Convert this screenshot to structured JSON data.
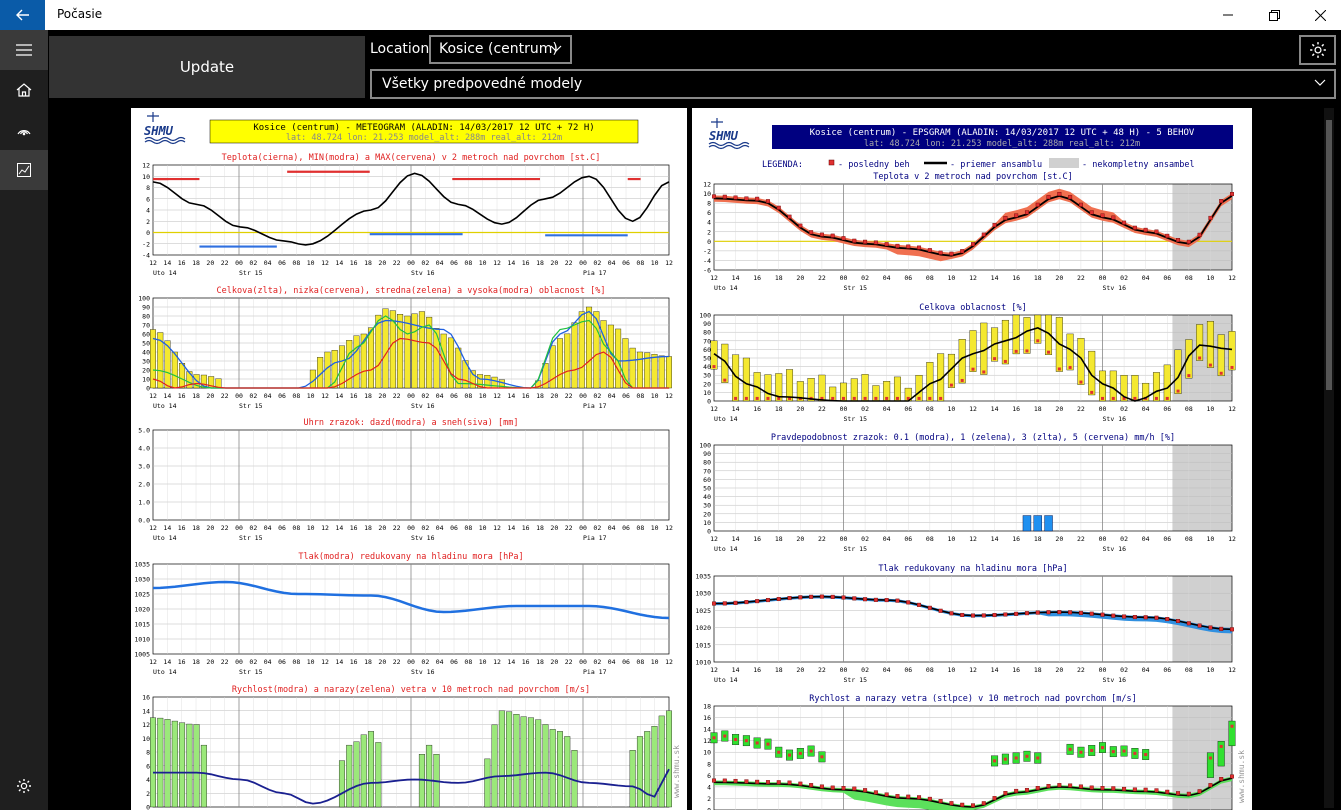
{
  "app": {
    "title": "Počasie"
  },
  "toolbar": {
    "update_label": "Update",
    "location_label": "Location",
    "location_value": "Kosice (centrum)",
    "models_value": "Všetky predpovedné modely"
  },
  "colors": {
    "accent": "#0a5ba8",
    "meteo_title_bg": "#ffff00",
    "eps_title_bg": "#000080"
  },
  "meteogram": {
    "logo_text": "SHMU",
    "header": "Kosice (centrum) - METEOGRAM (ALADIN: 14/03/2017 12 UTC + 72 H)",
    "sub": "lat: 48.724  lon: 21.253  model_alt: 288m  real_alt: 212m",
    "day_labels": [
      "Uto 14",
      "Str 15",
      "Stv 16",
      "Pia 17"
    ],
    "hour_labels": [
      "12",
      "14",
      "16",
      "18",
      "20",
      "22",
      "00",
      "02",
      "04",
      "06",
      "08",
      "10",
      "12",
      "14",
      "16",
      "18",
      "20",
      "22",
      "00",
      "02",
      "04",
      "06",
      "08",
      "10",
      "12",
      "14",
      "16",
      "18",
      "20",
      "22",
      "00",
      "02",
      "04",
      "06",
      "08",
      "10",
      "12"
    ],
    "watermark": "www.shmu.sk",
    "charts": [
      {
        "title": "Teplota(cierna), MIN(modra) a MAX(cervena) v 2 metroch nad povrchom [st.C]",
        "ylabels": [
          "12",
          "10",
          "8",
          "6",
          "4",
          "2",
          "0",
          "-2",
          "-4"
        ]
      },
      {
        "title": "Celkova(zlta), nizka(cervena), stredna(zelena) a vysoka(modra) oblacnost [%]",
        "ylabels": [
          "100",
          "90",
          "80",
          "70",
          "60",
          "50",
          "40",
          "30",
          "20",
          "10",
          "0"
        ]
      },
      {
        "title": "Uhrn zrazok: dazd(modra) a sneh(siva) [mm]",
        "ylabels": [
          "5.0",
          "4.0",
          "3.0",
          "2.0",
          "1.0",
          "0.0"
        ]
      },
      {
        "title": "Tlak(modra) redukovany na hladinu mora [hPa]",
        "ylabels": [
          "1035",
          "1030",
          "1025",
          "1020",
          "1015",
          "1010",
          "1005"
        ]
      },
      {
        "title": "Rychlost(modra) a narazy(zelena) vetra v 10 metroch nad povrchom [m/s]",
        "ylabels": [
          "16",
          "14",
          "12",
          "10",
          "8",
          "6",
          "4",
          "2",
          "0"
        ]
      }
    ]
  },
  "epsgram": {
    "logo_text": "SHMU",
    "header": "Kosice (centrum) - EPSGRAM (ALADIN: 14/03/2017 12 UTC + 48 H) - 5 BEHOV",
    "sub": "lat: 48.724  lon: 21.253  model_alt: 288m  real_alt: 212m",
    "legend": {
      "title": "LEGENDA:",
      "last": "- posledny beh",
      "mean": "- priemer ansamblu",
      "incomplete": "- nekompletny ansambel"
    },
    "day_labels": [
      "Uto 14",
      "Str 15",
      "Stv 16"
    ],
    "hour_labels": [
      "12",
      "14",
      "16",
      "18",
      "20",
      "22",
      "00",
      "02",
      "04",
      "06",
      "08",
      "10",
      "12",
      "14",
      "16",
      "18",
      "20",
      "22",
      "00",
      "02",
      "04",
      "06",
      "08",
      "10",
      "12"
    ],
    "watermark": "www.shmu.sk",
    "charts": [
      {
        "title": "Teplota v 2 metroch nad povrchom [st.C]",
        "ylabels": [
          "12",
          "10",
          "8",
          "6",
          "4",
          "2",
          "0",
          "-2",
          "-4",
          "-6"
        ]
      },
      {
        "title": "Celkova oblacnost [%]",
        "ylabels": [
          "100",
          "90",
          "80",
          "70",
          "60",
          "50",
          "40",
          "30",
          "20",
          "10",
          "0"
        ]
      },
      {
        "title": "Pravdepodobnost zrazok: 0.1 (modra), 1 (zelena), 3 (zlta), 5 (cervena) mm/h [%]",
        "ylabels": [
          "100",
          "90",
          "80",
          "70",
          "60",
          "50",
          "40",
          "30",
          "20",
          "10",
          "0"
        ]
      },
      {
        "title": "Tlak redukovany na hladinu mora [hPa]",
        "ylabels": [
          "1035",
          "1030",
          "1025",
          "1020",
          "1015",
          "1010"
        ]
      },
      {
        "title": "Rychlost a narazy vetra (stlpce) v 10 metroch nad povrchom [m/s]",
        "ylabels": [
          "18",
          "16",
          "14",
          "12",
          "10",
          "8",
          "6",
          "4",
          "2",
          "0"
        ]
      }
    ]
  }
}
